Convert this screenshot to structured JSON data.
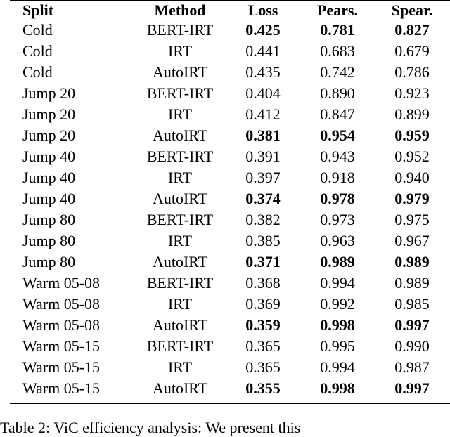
{
  "table": {
    "headers": [
      "Split",
      "Method",
      "Loss",
      "Pears.",
      "Spear."
    ],
    "rows": [
      {
        "cells": [
          "Cold",
          "BERT-IRT",
          "0.425",
          "0.781",
          "0.827"
        ],
        "bold": [
          2,
          3,
          4
        ]
      },
      {
        "cells": [
          "Cold",
          "IRT",
          "0.441",
          "0.683",
          "0.679"
        ],
        "bold": []
      },
      {
        "cells": [
          "Cold",
          "AutoIRT",
          "0.435",
          "0.742",
          "0.786"
        ],
        "bold": []
      },
      {
        "cells": [
          "Jump 20",
          "BERT-IRT",
          "0.404",
          "0.890",
          "0.923"
        ],
        "bold": []
      },
      {
        "cells": [
          "Jump 20",
          "IRT",
          "0.412",
          "0.847",
          "0.899"
        ],
        "bold": []
      },
      {
        "cells": [
          "Jump 20",
          "AutoIRT",
          "0.381",
          "0.954",
          "0.959"
        ],
        "bold": [
          2,
          3,
          4
        ]
      },
      {
        "cells": [
          "Jump 40",
          "BERT-IRT",
          "0.391",
          "0.943",
          "0.952"
        ],
        "bold": []
      },
      {
        "cells": [
          "Jump 40",
          "IRT",
          "0.397",
          "0.918",
          "0.940"
        ],
        "bold": []
      },
      {
        "cells": [
          "Jump 40",
          "AutoIRT",
          "0.374",
          "0.978",
          "0.979"
        ],
        "bold": [
          2,
          3,
          4
        ]
      },
      {
        "cells": [
          "Jump 80",
          "BERT-IRT",
          "0.382",
          "0.973",
          "0.975"
        ],
        "bold": []
      },
      {
        "cells": [
          "Jump 80",
          "IRT",
          "0.385",
          "0.963",
          "0.967"
        ],
        "bold": []
      },
      {
        "cells": [
          "Jump 80",
          "AutoIRT",
          "0.371",
          "0.989",
          "0.989"
        ],
        "bold": [
          2,
          3,
          4
        ]
      },
      {
        "cells": [
          "Warm 05-08",
          "BERT-IRT",
          "0.368",
          "0.994",
          "0.989"
        ],
        "bold": []
      },
      {
        "cells": [
          "Warm 05-08",
          "IRT",
          "0.369",
          "0.992",
          "0.985"
        ],
        "bold": []
      },
      {
        "cells": [
          "Warm 05-08",
          "AutoIRT",
          "0.359",
          "0.998",
          "0.997"
        ],
        "bold": [
          2,
          3,
          4
        ]
      },
      {
        "cells": [
          "Warm 05-15",
          "BERT-IRT",
          "0.365",
          "0.995",
          "0.990"
        ],
        "bold": []
      },
      {
        "cells": [
          "Warm 05-15",
          "IRT",
          "0.365",
          "0.994",
          "0.987"
        ],
        "bold": []
      },
      {
        "cells": [
          "Warm 05-15",
          "AutoIRT",
          "0.355",
          "0.998",
          "0.997"
        ],
        "bold": [
          2,
          3,
          4
        ]
      }
    ]
  },
  "caption": "Table 2: ViC efficiency analysis: We present this"
}
